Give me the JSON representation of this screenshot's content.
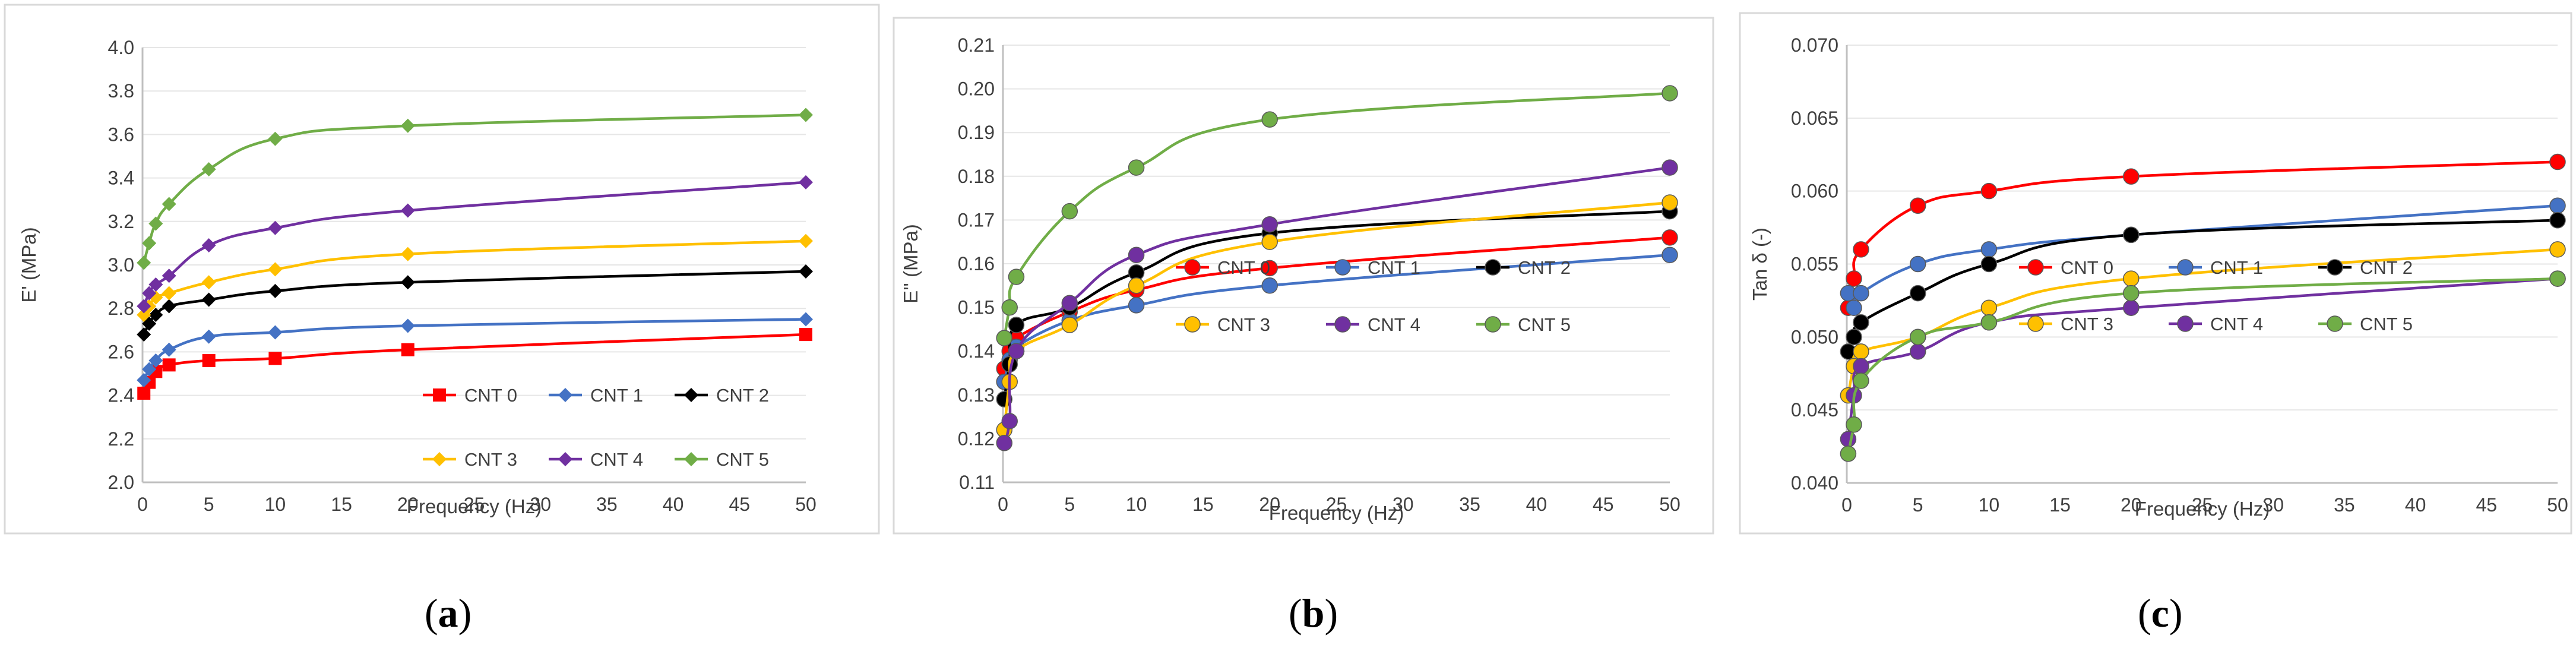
{
  "chart_data": [
    {
      "type": "line",
      "caption_letter": "a",
      "xlabel": "Frequency (Hz)",
      "ylabel": "E' (MPa)",
      "xlim": [
        0,
        50
      ],
      "ylim": [
        2.0,
        4.0
      ],
      "xticks": [
        "0",
        "5",
        "10",
        "15",
        "20",
        "25",
        "30",
        "35",
        "40",
        "45",
        "50"
      ],
      "yticks": [
        "2.0",
        "2.2",
        "2.4",
        "2.6",
        "2.8",
        "3.0",
        "3.2",
        "3.4",
        "3.6",
        "3.8",
        "4.0"
      ],
      "grid": "horizontal",
      "legend_position": "bottom-right",
      "x": [
        0.1,
        0.5,
        1,
        2,
        5,
        10,
        20,
        50
      ],
      "series": [
        {
          "name": "CNT 0",
          "color": "#ff0000",
          "marker": "square",
          "values": [
            2.41,
            2.46,
            2.51,
            2.54,
            2.56,
            2.57,
            2.61,
            2.68
          ]
        },
        {
          "name": "CNT 1",
          "color": "#4472c4",
          "marker": "diamond",
          "values": [
            2.47,
            2.52,
            2.56,
            2.61,
            2.67,
            2.69,
            2.72,
            2.75
          ]
        },
        {
          "name": "CNT 2",
          "color": "#000000",
          "marker": "diamond",
          "values": [
            2.68,
            2.73,
            2.77,
            2.81,
            2.84,
            2.88,
            2.92,
            2.97
          ]
        },
        {
          "name": "CNT 3",
          "color": "#ffc000",
          "marker": "diamond",
          "values": [
            2.77,
            2.81,
            2.85,
            2.87,
            2.92,
            2.98,
            3.05,
            3.11
          ]
        },
        {
          "name": "CNT 4",
          "color": "#7030a0",
          "marker": "diamond",
          "values": [
            2.81,
            2.87,
            2.91,
            2.95,
            3.09,
            3.17,
            3.25,
            3.38
          ]
        },
        {
          "name": "CNT 5",
          "color": "#70ad47",
          "marker": "diamond",
          "values": [
            3.01,
            3.1,
            3.19,
            3.28,
            3.44,
            3.58,
            3.64,
            3.69
          ]
        }
      ]
    },
    {
      "type": "line",
      "caption_letter": "b",
      "xlabel": "Frequency  (Hz)",
      "ylabel": "E'' (MPa)",
      "xlim": [
        0,
        50
      ],
      "ylim": [
        0.11,
        0.21
      ],
      "xticks": [
        "0",
        "5",
        "10",
        "15",
        "20",
        "25",
        "30",
        "35",
        "40",
        "45",
        "50"
      ],
      "yticks": [
        "0.11",
        "0.12",
        "0.13",
        "0.14",
        "0.15",
        "0.16",
        "0.17",
        "0.18",
        "0.19",
        "0.20",
        "0.21"
      ],
      "grid": "horizontal",
      "legend_position": "center-right",
      "x": [
        0.1,
        0.5,
        1,
        5,
        10,
        20,
        50
      ],
      "series": [
        {
          "name": "CNT 0",
          "color": "#ff0000",
          "marker": "circle",
          "values": [
            0.136,
            0.14,
            0.143,
            0.149,
            0.154,
            0.159,
            0.166
          ]
        },
        {
          "name": "CNT 1",
          "color": "#4472c4",
          "marker": "circle",
          "values": [
            0.133,
            0.138,
            0.141,
            0.147,
            0.1505,
            0.155,
            0.162
          ]
        },
        {
          "name": "CNT 2",
          "color": "#000000",
          "marker": "circle",
          "values": [
            0.129,
            0.137,
            0.146,
            0.15,
            0.158,
            0.167,
            0.172
          ]
        },
        {
          "name": "CNT 3",
          "color": "#ffc000",
          "marker": "circle",
          "values": [
            0.122,
            0.133,
            0.14,
            0.146,
            0.155,
            0.165,
            0.174
          ]
        },
        {
          "name": "CNT 4",
          "color": "#7030a0",
          "marker": "circle",
          "values": [
            0.119,
            0.124,
            0.14,
            0.151,
            0.162,
            0.169,
            0.182
          ]
        },
        {
          "name": "CNT 5",
          "color": "#70ad47",
          "marker": "circle",
          "values": [
            0.143,
            0.15,
            0.157,
            0.172,
            0.182,
            0.193,
            0.199
          ]
        }
      ]
    },
    {
      "type": "line",
      "caption_letter": "c",
      "xlabel": "Frequency (Hz)",
      "ylabel": "Tan δ (-)",
      "xlim": [
        0,
        50
      ],
      "ylim": [
        0.04,
        0.07
      ],
      "xticks": [
        "0",
        "5",
        "10",
        "15",
        "20",
        "25",
        "30",
        "35",
        "40",
        "45",
        "50"
      ],
      "yticks": [
        "0.040",
        "0.045",
        "0.050",
        "0.055",
        "0.060",
        "0.065",
        "0.070"
      ],
      "grid": "horizontal",
      "legend_position": "center-right",
      "x": [
        0.1,
        0.5,
        1,
        5,
        10,
        20,
        50
      ],
      "series": [
        {
          "name": "CNT 0",
          "color": "#ff0000",
          "marker": "circle",
          "values": [
            0.052,
            0.054,
            0.056,
            0.059,
            0.06,
            0.061,
            0.062
          ]
        },
        {
          "name": "CNT 1",
          "color": "#4472c4",
          "marker": "circle",
          "values": [
            0.053,
            0.052,
            0.053,
            0.055,
            0.056,
            0.057,
            0.059
          ]
        },
        {
          "name": "CNT 2",
          "color": "#000000",
          "marker": "circle",
          "values": [
            0.049,
            0.05,
            0.051,
            0.053,
            0.055,
            0.057,
            0.058
          ]
        },
        {
          "name": "CNT 3",
          "color": "#ffc000",
          "marker": "circle",
          "values": [
            0.046,
            0.048,
            0.049,
            0.05,
            0.052,
            0.054,
            0.056
          ]
        },
        {
          "name": "CNT 4",
          "color": "#7030a0",
          "marker": "circle",
          "values": [
            0.043,
            0.046,
            0.048,
            0.049,
            0.051,
            0.052,
            0.054
          ]
        },
        {
          "name": "CNT 5",
          "color": "#70ad47",
          "marker": "circle",
          "values": [
            0.042,
            0.044,
            0.047,
            0.05,
            0.051,
            0.053,
            0.054
          ]
        }
      ]
    }
  ]
}
